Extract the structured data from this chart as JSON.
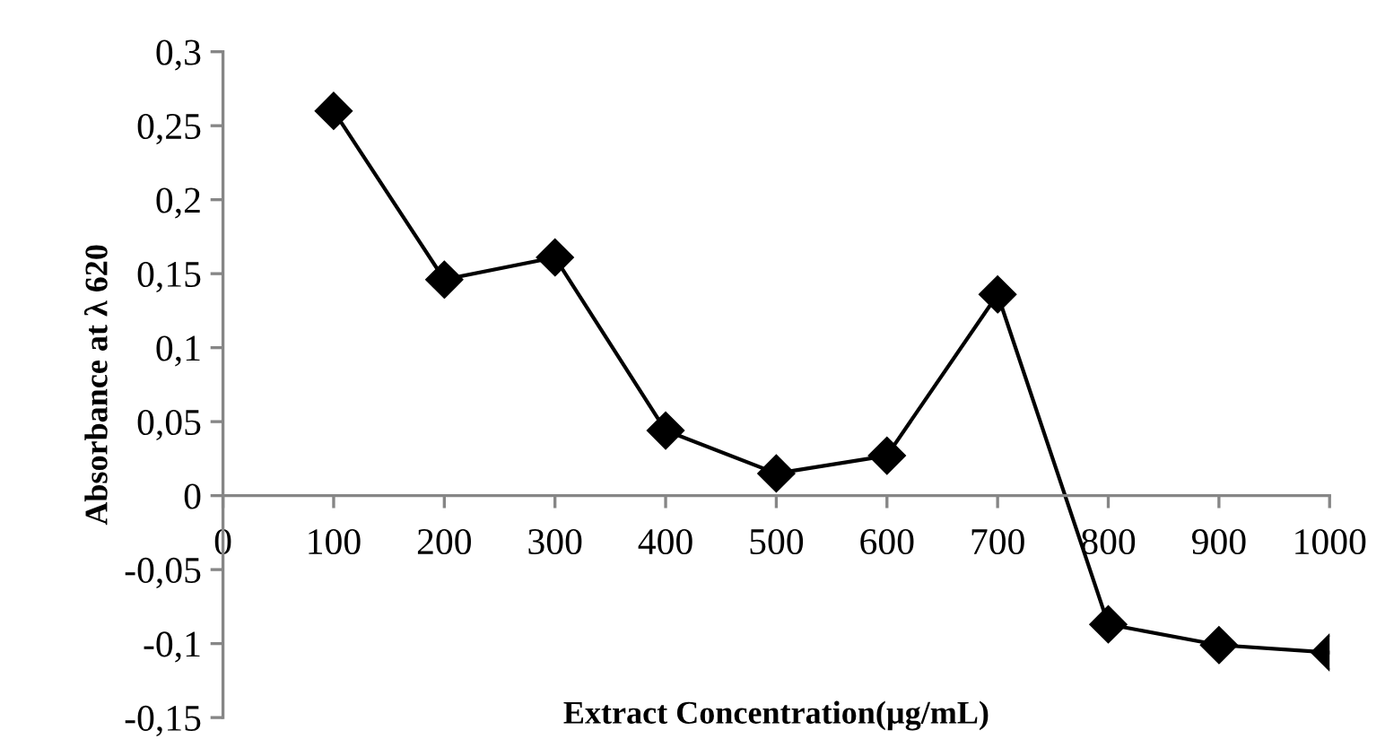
{
  "chart_data": {
    "type": "line",
    "xlabel": "Extract Concentration(µg/mL)",
    "ylabel": "Absorbance at λ 620",
    "x": [
      100,
      200,
      300,
      400,
      500,
      600,
      700,
      800,
      900,
      1000
    ],
    "series": [
      {
        "color": "#000000",
        "values": [
          0.26,
          0.146,
          0.161,
          0.044,
          0.015,
          0.027,
          0.136,
          -0.087,
          -0.101,
          -0.106
        ]
      }
    ],
    "xlim": [
      0,
      1000
    ],
    "xticks": [
      0,
      100,
      200,
      300,
      400,
      500,
      600,
      700,
      800,
      900,
      1000
    ],
    "ylim": [
      -0.15,
      0.3
    ],
    "yticks": [
      {
        "value": -0.15,
        "label": "-0,15"
      },
      {
        "value": -0.1,
        "label": "-0,1"
      },
      {
        "value": -0.05,
        "label": "-0,05"
      },
      {
        "value": 0,
        "label": "0"
      },
      {
        "value": 0.05,
        "label": "0,05"
      },
      {
        "value": 0.1,
        "label": "0,1"
      },
      {
        "value": 0.15,
        "label": "0,15"
      },
      {
        "value": 0.2,
        "label": "0,2"
      },
      {
        "value": 0.25,
        "label": "0,25"
      },
      {
        "value": 0.3,
        "label": "0,3"
      }
    ],
    "marker": "diamond",
    "line_style": "solid",
    "grid": false,
    "legend": false
  }
}
